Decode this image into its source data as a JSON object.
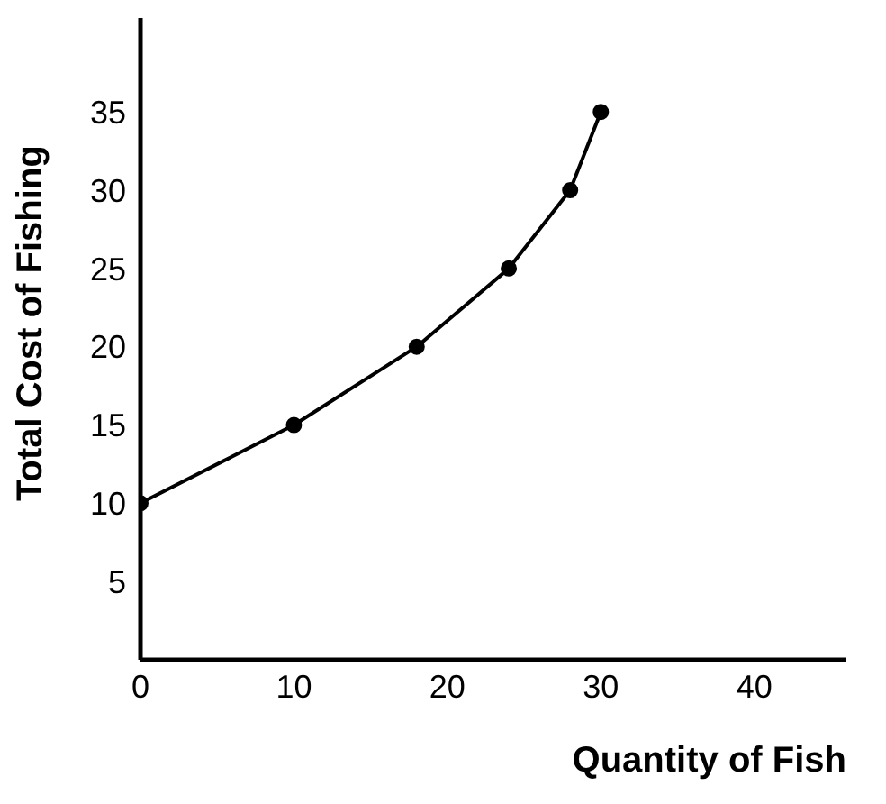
{
  "chart_data": {
    "type": "line",
    "xlabel": "Quantity of Fish",
    "ylabel": "Total Cost of Fishing",
    "x": [
      0,
      10,
      18,
      24,
      28,
      30
    ],
    "series": [
      {
        "color": "#000000",
        "values": [
          10,
          15,
          20,
          25,
          30,
          35
        ]
      }
    ],
    "xlim": [
      0,
      46
    ],
    "xticks": [
      0,
      10,
      20,
      30,
      40
    ],
    "ylim": [
      0,
      41
    ],
    "yticks": [
      5,
      10,
      15,
      20,
      25,
      30,
      35
    ],
    "grid": false,
    "legend": false,
    "marker": "circle",
    "line_style": "solid"
  }
}
